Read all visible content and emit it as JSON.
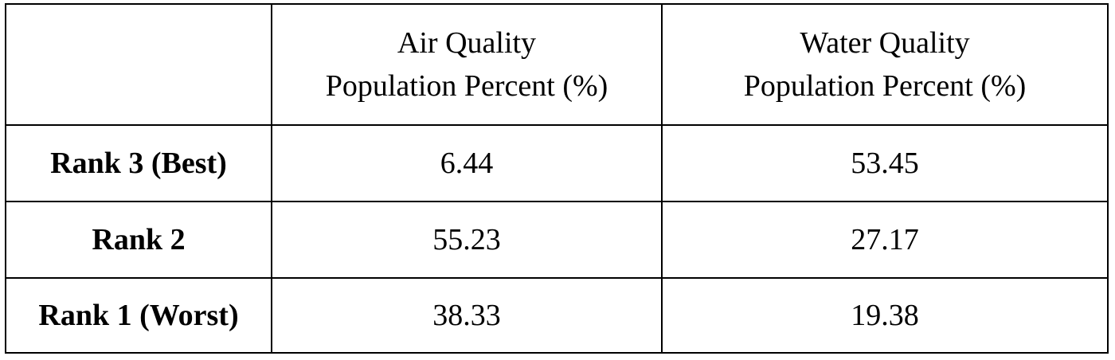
{
  "table": {
    "columns": [
      {
        "line1": "Air Quality",
        "line2": "Population Percent (%)"
      },
      {
        "line1": "Water Quality",
        "line2": "Population Percent (%)"
      }
    ],
    "rows": [
      {
        "label": "Rank 3 (Best)",
        "air": "6.44",
        "water": "53.45"
      },
      {
        "label": "Rank 2",
        "air": "55.23",
        "water": "27.17"
      },
      {
        "label": "Rank 1 (Worst)",
        "air": "38.33",
        "water": "19.38"
      }
    ]
  }
}
